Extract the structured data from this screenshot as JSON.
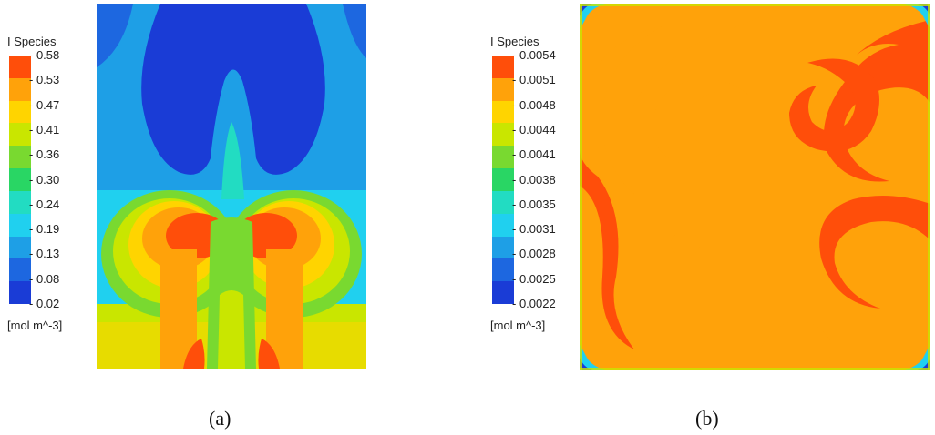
{
  "colormap": [
    "#ff4e0a",
    "#ffa20a",
    "#ffd400",
    "#c9e600",
    "#79d930",
    "#29d664",
    "#22dcc2",
    "#20d0ef",
    "#1e9fe6",
    "#1d67e0",
    "#1a3cd6"
  ],
  "chart_data": [
    {
      "type": "heatmap",
      "panel_label": "(a)",
      "colorbar": {
        "title": "I Species",
        "unit": "[mol m^-3]",
        "ticks": [
          "0.58",
          "0.53",
          "0.47",
          "0.41",
          "0.36",
          "0.30",
          "0.24",
          "0.19",
          "0.13",
          "0.08",
          "0.02"
        ],
        "range": [
          0.02,
          0.58
        ]
      },
      "description_values": {
        "top_center_plume": 0.05,
        "background_middle": 0.18,
        "twin_vortex_cores": 0.57,
        "bottom_region": 0.44
      }
    },
    {
      "type": "heatmap",
      "panel_label": "(b)",
      "colorbar": {
        "title": "I Species",
        "unit": "[mol m^-3]",
        "ticks": [
          "0.0054",
          "0.0051",
          "0.0048",
          "0.0044",
          "0.0041",
          "0.0038",
          "0.0035",
          "0.0031",
          "0.0028",
          "0.0025",
          "0.0022"
        ],
        "range": [
          0.0022,
          0.0054
        ]
      },
      "description_values": {
        "dominant_field": 0.0053,
        "swirl_regions": 0.0051,
        "corner_minimum": 0.0022
      }
    }
  ]
}
